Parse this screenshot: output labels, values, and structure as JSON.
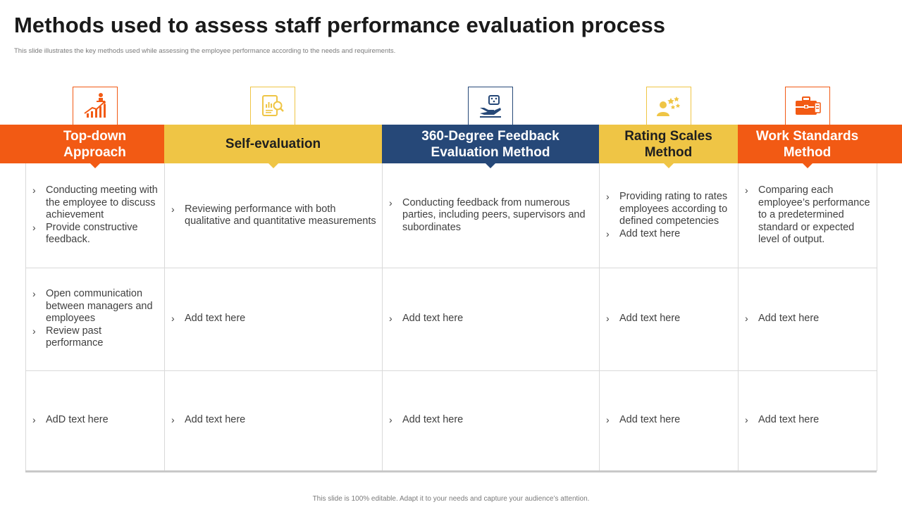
{
  "title": "Methods used to assess staff performance evaluation process",
  "subtitle": "This slide illustrates the key methods used while assessing the employee performance according to the needs and requirements.",
  "footer": "This slide is 100% editable. Adapt it to your needs and capture your audience’s attention.",
  "bullet_mark": "›",
  "colors": {
    "orange": "#f25a14",
    "yellow": "#efc545",
    "navy": "#264878"
  },
  "columns": [
    {
      "key": "topdown",
      "header_lines": [
        "Top-down",
        "Approach"
      ],
      "icon": "growth-chart-icon",
      "theme": "orange",
      "rows": [
        [
          "Conducting meeting with the employee to discuss achievement",
          "Provide constructive feedback."
        ],
        [
          "Open communication between managers and employees",
          "Review past performance"
        ],
        [
          "AdD text here"
        ]
      ]
    },
    {
      "key": "self",
      "header_lines": [
        "Self-evaluation"
      ],
      "icon": "document-magnifier-icon",
      "theme": "yellow",
      "rows": [
        [
          "Reviewing performance with both qualitative and quantitative measurements"
        ],
        [
          "Add text here"
        ],
        [
          "Add text here"
        ]
      ]
    },
    {
      "key": "feedback360",
      "header_lines": [
        "360-Degree Feedback",
        "Evaluation Method"
      ],
      "icon": "hand-feedback-icon",
      "theme": "navy",
      "rows": [
        [
          "Conducting feedback from numerous parties, including peers, supervisors and subordinates"
        ],
        [
          "Add text here"
        ],
        [
          "Add text here"
        ]
      ]
    },
    {
      "key": "rating",
      "header_lines": [
        "Rating Scales",
        "Method"
      ],
      "icon": "person-stars-icon",
      "theme": "yellow",
      "rows": [
        [
          "Providing rating to rates employees according to defined competencies",
          "Add text here"
        ],
        [
          "Add text here"
        ],
        [
          "Add text here"
        ]
      ]
    },
    {
      "key": "standards",
      "header_lines": [
        "Work Standards",
        "Method"
      ],
      "icon": "briefcase-icon",
      "theme": "orange",
      "rows": [
        [
          "Comparing each employee’s performance to a predetermined standard or expected level of output."
        ],
        [
          "Add text here"
        ],
        [
          "Add text here"
        ]
      ]
    }
  ]
}
